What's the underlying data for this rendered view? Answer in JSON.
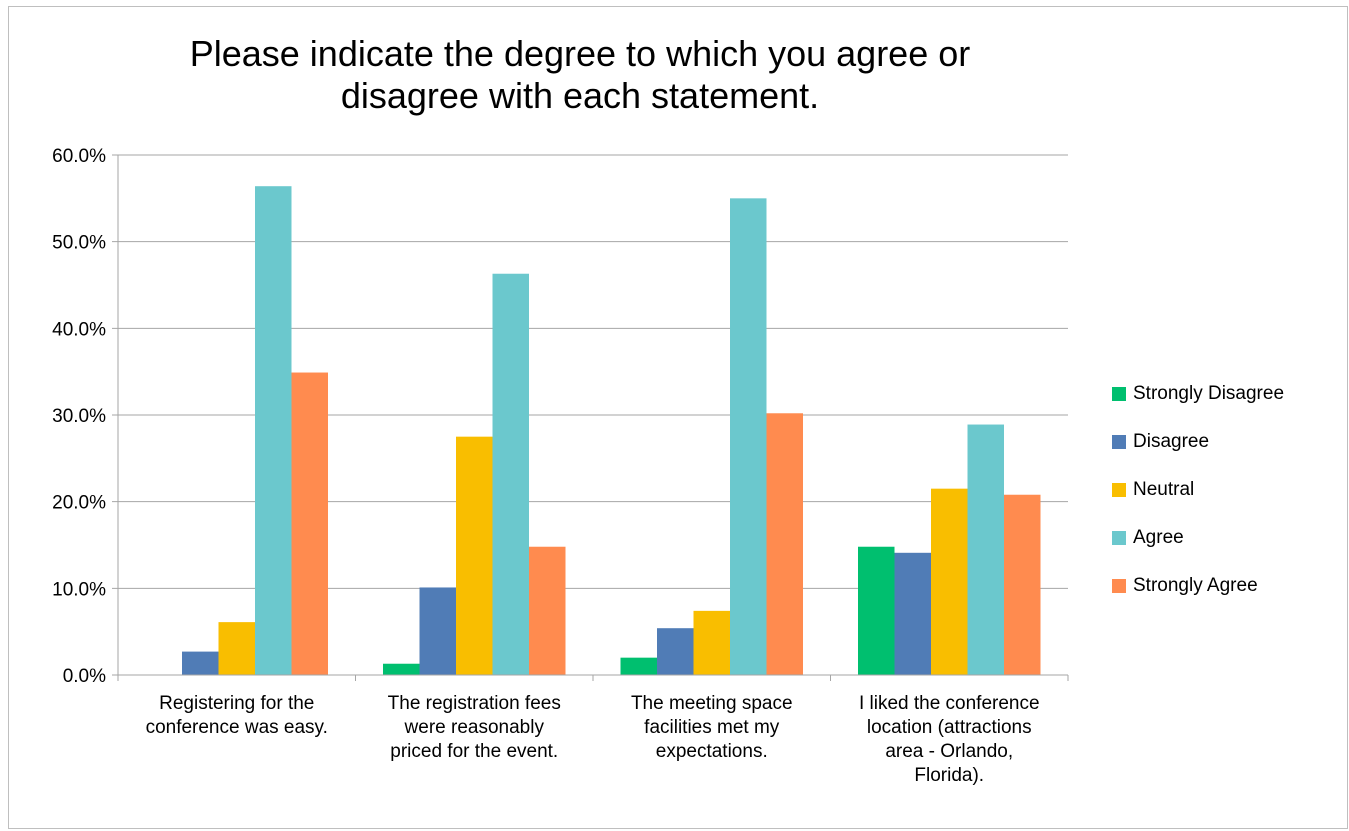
{
  "chart_data": {
    "type": "bar",
    "title": "Please indicate the degree to which you agree or disagree with each statement.",
    "categories": [
      "Registering for the conference was easy.",
      "The registration fees were reasonably priced for the event.",
      "The meeting space facilities met my expectations.",
      "I liked the conference location (attractions area - Orlando, Florida)."
    ],
    "category_labels_wrapped": [
      "Registering for the\nconference was easy.",
      "The registration fees\nwere reasonably\npriced for the event.",
      "The meeting space\nfacilities met my\nexpectations.",
      "I liked the conference\nlocation (attractions\narea - Orlando,\nFlorida)."
    ],
    "series": [
      {
        "name": "Strongly Disagree",
        "color": "#00bf6f",
        "values": [
          0.0,
          1.3,
          2.0,
          14.8
        ]
      },
      {
        "name": "Disagree",
        "color": "#507cb6",
        "values": [
          2.7,
          10.1,
          5.4,
          14.1
        ]
      },
      {
        "name": "Neutral",
        "color": "#f9be00",
        "values": [
          6.1,
          27.5,
          7.4,
          21.5
        ]
      },
      {
        "name": "Agree",
        "color": "#6bc8cd",
        "values": [
          56.4,
          46.3,
          55.0,
          28.9
        ]
      },
      {
        "name": "Strongly Agree",
        "color": "#ff8b4f",
        "values": [
          34.9,
          14.8,
          30.2,
          20.8
        ]
      }
    ],
    "ylim": [
      0,
      60
    ],
    "yticks": [
      "0.0%",
      "10.0%",
      "20.0%",
      "30.0%",
      "40.0%",
      "50.0%",
      "60.0%"
    ],
    "grid": true,
    "legend_position": "right"
  }
}
